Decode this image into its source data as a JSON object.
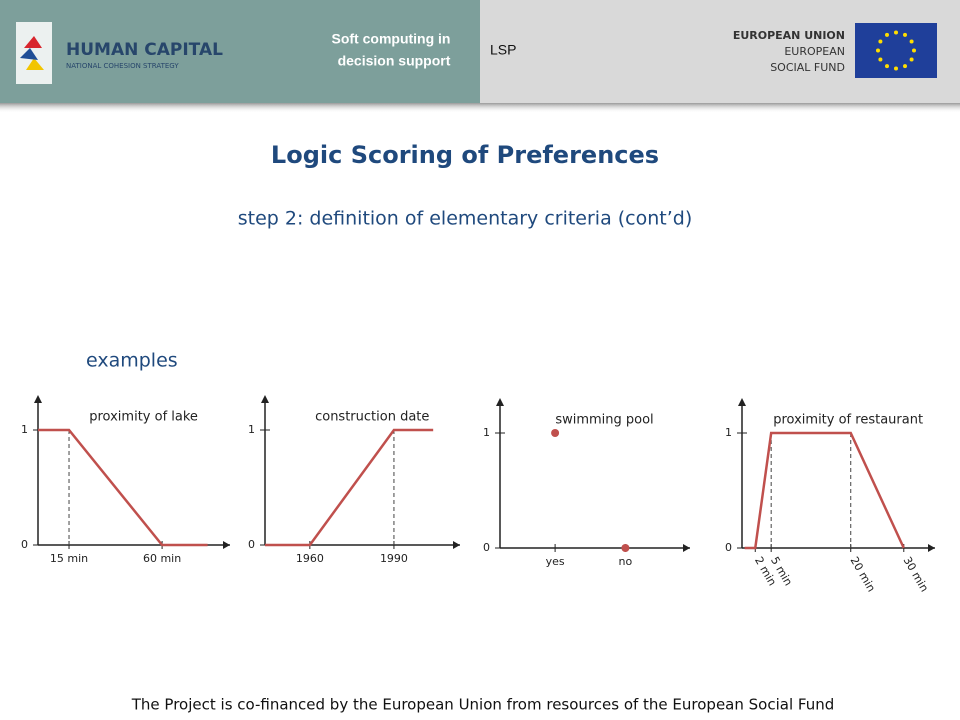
{
  "header": {
    "logo_title": "HUMAN CAPITAL",
    "logo_subtitle": "NATIONAL COHESION STRATEGY",
    "course": [
      "Soft computing in",
      "decision support"
    ],
    "topic": "LSP",
    "eu": [
      "EUROPEAN UNION",
      "EUROPEAN",
      "SOCIAL FUND"
    ]
  },
  "title": "Logic Scoring of Preferences",
  "subtitle": "step 2: definition of elementary criteria (cont’d)",
  "section": "examples",
  "footer": "The Project is co-financed by the European Union from resources of the European Social Fund",
  "chart_data": [
    {
      "type": "line",
      "title": "proximity of lake",
      "color": "#c0504d",
      "x": [
        0,
        15,
        60,
        82
      ],
      "y": [
        1,
        1,
        0,
        0
      ],
      "xlim": [
        0,
        88
      ],
      "ylim": [
        0,
        1.2
      ],
      "xticks": [
        {
          "value": 15,
          "label": "15 min"
        },
        {
          "value": 60,
          "label": "60 min"
        }
      ],
      "yticks": [
        0,
        1
      ]
    },
    {
      "type": "line",
      "title": "construction date",
      "color": "#c0504d",
      "x": [
        1944,
        1960,
        1990,
        2004
      ],
      "y": [
        0,
        0,
        1,
        1
      ],
      "xlim": [
        1944,
        2010
      ],
      "ylim": [
        0,
        1.2
      ],
      "xticks": [
        1960,
        1990
      ],
      "yticks": [
        0,
        1
      ]
    },
    {
      "type": "scatter",
      "title": "swimming pool",
      "color": "#c0504d",
      "categories": [
        "yes",
        "no"
      ],
      "values": [
        1,
        0
      ],
      "ylim": [
        0,
        1.2
      ],
      "yticks": [
        0,
        1
      ]
    },
    {
      "type": "line",
      "title": "proximity of restaurant",
      "color": "#c0504d",
      "x": [
        0,
        2,
        5,
        20,
        30
      ],
      "y": [
        0,
        0,
        1,
        1,
        0
      ],
      "xlim": [
        -0.5,
        34
      ],
      "ylim": [
        0,
        1.2
      ],
      "xtick_rotation": 60,
      "xticks": [
        {
          "value": 2,
          "label": "2 min"
        },
        {
          "value": 5,
          "label": "5 min"
        },
        {
          "value": 20,
          "label": "20 min"
        },
        {
          "value": 30,
          "label": "30 min"
        }
      ],
      "yticks": [
        0,
        1
      ]
    }
  ]
}
